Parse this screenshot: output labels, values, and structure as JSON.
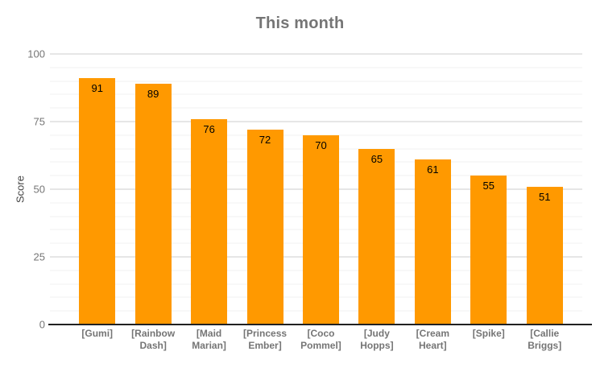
{
  "chart_data": {
    "type": "bar",
    "title": "This month",
    "ylabel": "Score",
    "xlabel": "",
    "categories": [
      "[Gumi]",
      "[Rainbow Dash]",
      "[Maid Marian]",
      "[Princess Ember]",
      "[Coco Pommel]",
      "[Judy Hopps]",
      "[Cream Heart]",
      "[Spike]",
      "[Callie Briggs]"
    ],
    "values": [
      91,
      89,
      76,
      72,
      70,
      65,
      61,
      55,
      51
    ],
    "ylim": [
      0,
      100
    ],
    "yticks": [
      0,
      25,
      50,
      75,
      100
    ],
    "minor_tick_step": 5,
    "grid": true,
    "legend_position": "none",
    "value_labels": true
  },
  "colors": {
    "bar": "#ff9900",
    "title_text": "#757575",
    "axis_tick_text": "#757575",
    "category_text": "#757575",
    "value_label_text": "#000000",
    "baseline": "#212121",
    "major_gridline": "#cccccc",
    "minor_gridline": "#f2f2f2",
    "background": "#ffffff"
  }
}
